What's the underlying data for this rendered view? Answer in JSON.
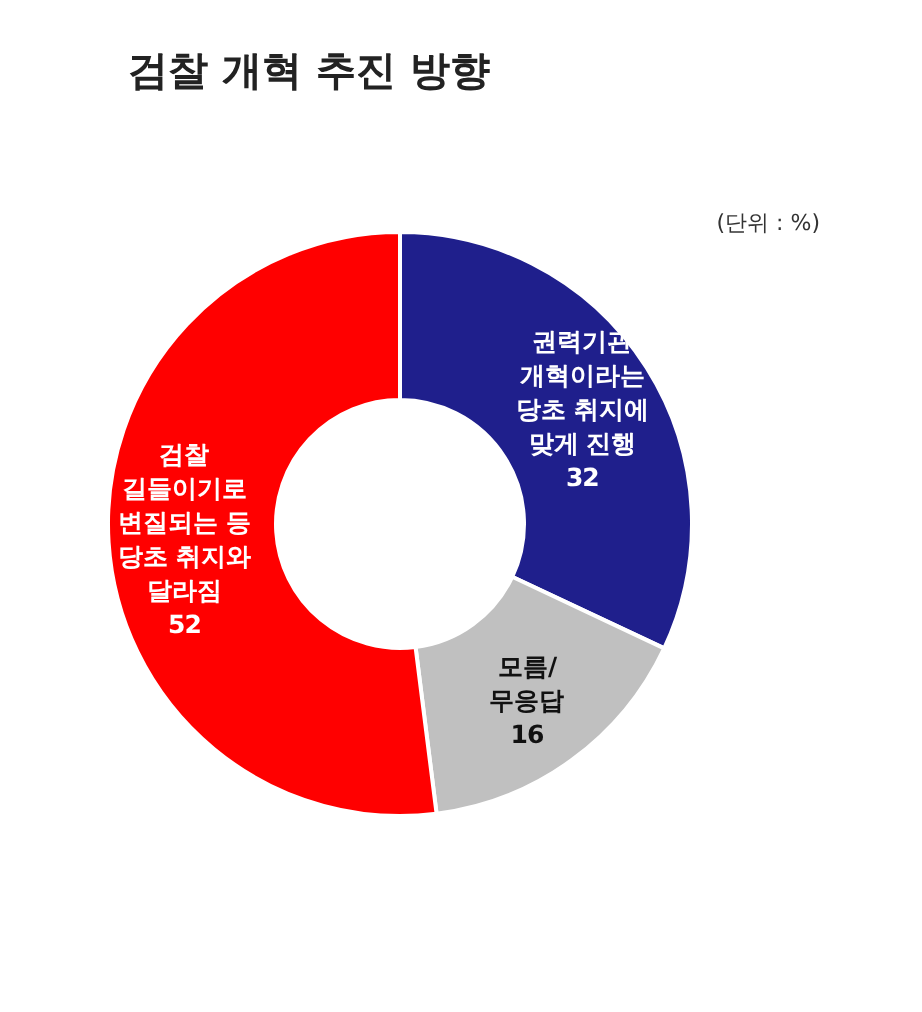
{
  "chart_data": {
    "type": "donut",
    "title": "검찰 개혁 추진 방향",
    "annotations": [
      "(단위 : %)"
    ],
    "categories": [
      "권력기관 개혁이라는 당초 취지에 맞게 진행",
      "모름/ 무응답",
      "검찰 길들이기로 변질되는 등 당초 취지와 달라짐"
    ],
    "values": [
      32,
      16,
      52
    ],
    "colors": [
      "#1f1f8c",
      "#c0c0c0",
      "#ff0000"
    ],
    "data_labels": true
  }
}
